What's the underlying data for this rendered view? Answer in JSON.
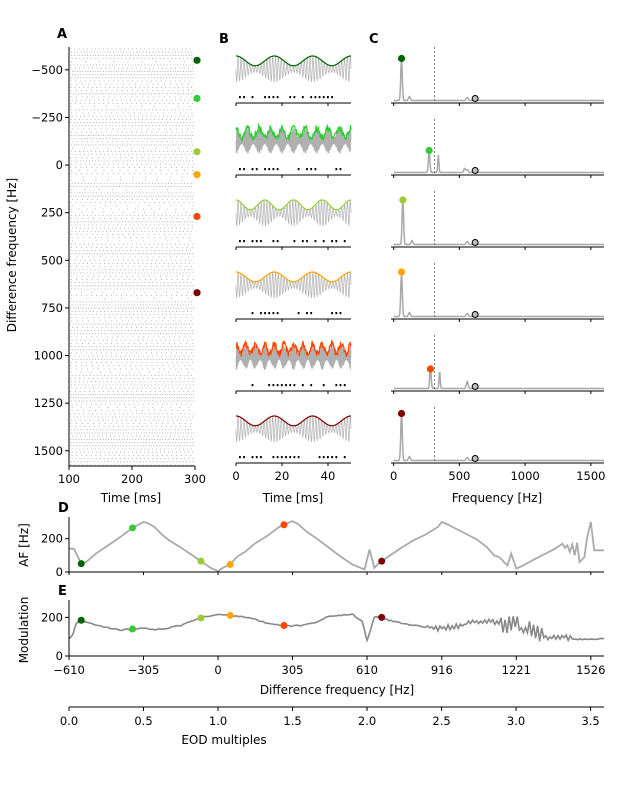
{
  "colors": {
    "c1": "#006400",
    "c2": "#32cd32",
    "c3": "#9acd32",
    "c4": "#ffa500",
    "c5": "#ff4500",
    "c6": "#800000",
    "gray": "#aaaaaa",
    "dark_gray": "#888888"
  },
  "chart_data": [
    {
      "panel": "A",
      "type": "raster",
      "xlabel": "Time [ms]",
      "ylabel": "Difference frequency [Hz]",
      "xlim": [
        100,
        300
      ],
      "xticks": [
        "100",
        "200",
        "300"
      ],
      "ylim": [
        1580,
        -620
      ],
      "yticks": [
        -500,
        -250,
        0,
        250,
        500,
        750,
        1000,
        1250,
        1500
      ],
      "yticklabels": [
        "−500",
        "−250",
        "0",
        "250",
        "500",
        "750",
        "1000",
        "1250",
        "1500"
      ],
      "markers": [
        {
          "df": -550,
          "color": "#006400"
        },
        {
          "df": -350,
          "color": "#32cd32"
        },
        {
          "df": -70,
          "color": "#9acd32"
        },
        {
          "df": 50,
          "color": "#ffa500"
        },
        {
          "df": 270,
          "color": "#ff4500"
        },
        {
          "df": 670,
          "color": "#800000"
        }
      ]
    },
    {
      "panel": "B",
      "type": "line",
      "xlabel": "Time [ms]",
      "xlim": [
        0,
        50
      ],
      "xticks": [
        "0",
        "20",
        "40"
      ],
      "series": [
        {
          "color": "#006400",
          "env_cycles": 3,
          "beat": 40,
          "mode": "smooth"
        },
        {
          "color": "#32cd32",
          "env_cycles": 10,
          "beat": 150,
          "mode": "jagged"
        },
        {
          "color": "#9acd32",
          "env_cycles": 4,
          "beat": 40,
          "mode": "smooth"
        },
        {
          "color": "#ffa500",
          "env_cycles": 3,
          "beat": 40,
          "mode": "smooth"
        },
        {
          "color": "#ff4500",
          "env_cycles": 12,
          "beat": 180,
          "mode": "jagged"
        },
        {
          "color": "#800000",
          "env_cycles": 3,
          "beat": 40,
          "mode": "smooth"
        }
      ]
    },
    {
      "panel": "C",
      "type": "line",
      "xlabel": "Frequency [Hz]",
      "xlim": [
        -20,
        1600
      ],
      "xticks": [
        "0",
        "500",
        "1000",
        "1500"
      ],
      "eod_line": 310,
      "series": [
        {
          "color": "#006400",
          "peak_f": 60,
          "peak_h": 0.85
        },
        {
          "color": "#32cd32",
          "peak_f": 270,
          "peak_h": 0.45
        },
        {
          "color": "#9acd32",
          "peak_f": 70,
          "peak_h": 0.9
        },
        {
          "color": "#ffa500",
          "peak_f": 60,
          "peak_h": 0.9
        },
        {
          "color": "#ff4500",
          "peak_f": 280,
          "peak_h": 0.4
        },
        {
          "color": "#800000",
          "peak_f": 60,
          "peak_h": 0.95
        }
      ],
      "gray_marker_f": 620
    },
    {
      "panel": "D",
      "type": "line",
      "ylabel": "AF [Hz]",
      "xlim": [
        -610,
        1580
      ],
      "ylim": [
        0,
        330
      ],
      "yticks": [
        "0",
        "200"
      ],
      "x": [
        -610,
        -590,
        -560,
        -540,
        -500,
        -450,
        -400,
        -350,
        -305,
        -290,
        -260,
        -230,
        -200,
        -150,
        -100,
        -60,
        -30,
        0,
        20,
        50,
        80,
        110,
        150,
        200,
        250,
        280,
        305,
        330,
        360,
        400,
        450,
        500,
        550,
        600,
        620,
        640,
        660,
        700,
        750,
        800,
        850,
        900,
        916,
        940,
        980,
        1020,
        1060,
        1100,
        1130,
        1150,
        1165,
        1170,
        1185,
        1200,
        1221,
        1250,
        1300,
        1340,
        1380,
        1400,
        1410,
        1420,
        1430,
        1440,
        1450,
        1460,
        1470,
        1480,
        1500,
        1510,
        1526,
        1540,
        1580
      ],
      "y": [
        140,
        140,
        50,
        60,
        110,
        160,
        210,
        265,
        300,
        295,
        270,
        225,
        190,
        145,
        95,
        55,
        25,
        5,
        25,
        45,
        95,
        120,
        170,
        215,
        270,
        290,
        305,
        285,
        245,
        205,
        150,
        95,
        45,
        15,
        135,
        25,
        55,
        95,
        145,
        190,
        225,
        270,
        300,
        285,
        255,
        225,
        195,
        150,
        100,
        90,
        70,
        60,
        40,
        110,
        20,
        40,
        80,
        110,
        140,
        160,
        170,
        145,
        160,
        120,
        165,
        100,
        175,
        60,
        90,
        200,
        300,
        130,
        130
      ]
    },
    {
      "panel": "E",
      "type": "line",
      "ylabel": "Modulation",
      "xlabel": "Difference frequency [Hz]",
      "xlim": [
        -610,
        1580
      ],
      "ylim": [
        0,
        290
      ],
      "yticks": [
        "0",
        "200"
      ],
      "xticks": [
        "−610",
        "−305",
        "0",
        "305",
        "610",
        "916",
        "1221",
        "1526"
      ],
      "x": [
        -610,
        -595,
        -580,
        -560,
        -540,
        -500,
        -450,
        -400,
        -350,
        -305,
        -260,
        -230,
        -200,
        -150,
        -100,
        -50,
        0,
        50,
        100,
        150,
        200,
        250,
        300,
        350,
        400,
        450,
        500,
        550,
        590,
        610,
        640,
        660,
        700,
        750,
        800,
        850,
        900,
        950,
        1000,
        1050,
        1100,
        1150,
        1200,
        1250,
        1300,
        1350,
        1400,
        1450,
        1500,
        1580
      ],
      "y": [
        90,
        110,
        170,
        185,
        175,
        160,
        145,
        135,
        140,
        145,
        135,
        140,
        145,
        160,
        185,
        205,
        215,
        210,
        205,
        190,
        170,
        160,
        155,
        160,
        175,
        205,
        210,
        215,
        180,
        80,
        200,
        205,
        185,
        170,
        160,
        150,
        140,
        150,
        160,
        175,
        180,
        170,
        160,
        140,
        110,
        95,
        100,
        90,
        85,
        90
      ]
    },
    {
      "panel": "F",
      "type": "axis",
      "xlabel": "EOD multiples",
      "xlim": [
        0,
        3.59
      ],
      "xticks": [
        "0.0",
        "0.5",
        "1.0",
        "1.5",
        "2.0",
        "2.5",
        "3.0",
        "3.5"
      ]
    }
  ],
  "panel_labels": [
    "A",
    "B",
    "C",
    "D",
    "E"
  ]
}
